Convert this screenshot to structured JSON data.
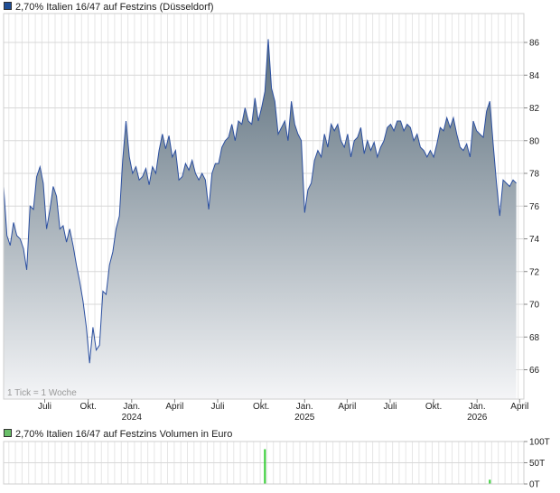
{
  "chart_data": [
    {
      "type": "area",
      "title": "2,70% Italien 16/47 auf Festzins (Düsseldorf)",
      "legend_color": "#1f4e96",
      "line_color": "#2b4fa0",
      "fill_top_color": "#5b6e7c",
      "fill_bottom_color": "#f4f5f7",
      "y_ticks": [
        "66",
        "68",
        "70",
        "72",
        "74",
        "76",
        "78",
        "80",
        "82",
        "84",
        "86"
      ],
      "x_labels": [
        {
          "month": "Juli",
          "year": ""
        },
        {
          "month": "Okt.",
          "year": ""
        },
        {
          "month": "Jan.",
          "year": "2024"
        },
        {
          "month": "April",
          "year": ""
        },
        {
          "month": "Juli",
          "year": ""
        },
        {
          "month": "Okt.",
          "year": ""
        },
        {
          "month": "Jan.",
          "year": "2025"
        },
        {
          "month": "April",
          "year": ""
        },
        {
          "month": "Juli",
          "year": ""
        },
        {
          "month": "Okt.",
          "year": ""
        },
        {
          "month": "Jan.",
          "year": "2026"
        },
        {
          "month": "April",
          "year": ""
        }
      ],
      "tick_note": "1 Tick = 1 Woche",
      "x_range": [
        "2023-04-05",
        "2026-04-10"
      ],
      "ylim": [
        64.2,
        87.5
      ],
      "grid": true,
      "series": [
        {
          "values": [
            [
              "2023-04-05",
              77.2
            ],
            [
              "2023-04-12",
              74.2
            ],
            [
              "2023-04-19",
              73.6
            ],
            [
              "2023-04-26",
              75.0
            ],
            [
              "2023-05-03",
              74.2
            ],
            [
              "2023-05-10",
              74.0
            ],
            [
              "2023-05-17",
              73.4
            ],
            [
              "2023-05-24",
              72.1
            ],
            [
              "2023-05-31",
              76.0
            ],
            [
              "2023-06-07",
              75.8
            ],
            [
              "2023-06-14",
              77.8
            ],
            [
              "2023-06-21",
              78.4
            ],
            [
              "2023-06-28",
              77.4
            ],
            [
              "2023-07-05",
              74.6
            ],
            [
              "2023-07-12",
              75.8
            ],
            [
              "2023-07-19",
              77.2
            ],
            [
              "2023-07-26",
              76.6
            ],
            [
              "2023-08-02",
              74.6
            ],
            [
              "2023-08-09",
              74.8
            ],
            [
              "2023-08-16",
              73.8
            ],
            [
              "2023-08-23",
              74.6
            ],
            [
              "2023-08-30",
              73.6
            ],
            [
              "2023-09-06",
              72.4
            ],
            [
              "2023-09-13",
              71.4
            ],
            [
              "2023-09-20",
              70.2
            ],
            [
              "2023-09-27",
              68.6
            ],
            [
              "2023-10-04",
              66.4
            ],
            [
              "2023-10-11",
              68.6
            ],
            [
              "2023-10-18",
              67.2
            ],
            [
              "2023-10-25",
              67.5
            ],
            [
              "2023-11-01",
              70.8
            ],
            [
              "2023-11-08",
              70.6
            ],
            [
              "2023-11-15",
              72.4
            ],
            [
              "2023-11-22",
              73.2
            ],
            [
              "2023-11-29",
              74.6
            ],
            [
              "2023-12-06",
              75.4
            ],
            [
              "2023-12-13",
              78.8
            ],
            [
              "2023-12-20",
              81.2
            ],
            [
              "2023-12-27",
              79.0
            ],
            [
              "2024-01-03",
              78.0
            ],
            [
              "2024-01-10",
              78.4
            ],
            [
              "2024-01-17",
              77.6
            ],
            [
              "2024-01-24",
              77.8
            ],
            [
              "2024-01-31",
              78.3
            ],
            [
              "2024-02-07",
              77.3
            ],
            [
              "2024-02-14",
              78.4
            ],
            [
              "2024-02-21",
              78.0
            ],
            [
              "2024-02-28",
              79.4
            ],
            [
              "2024-03-06",
              80.4
            ],
            [
              "2024-03-13",
              79.5
            ],
            [
              "2024-03-20",
              80.3
            ],
            [
              "2024-03-27",
              79.0
            ],
            [
              "2024-04-03",
              79.4
            ],
            [
              "2024-04-10",
              77.6
            ],
            [
              "2024-04-17",
              77.8
            ],
            [
              "2024-04-24",
              78.6
            ],
            [
              "2024-05-01",
              78.2
            ],
            [
              "2024-05-08",
              78.8
            ],
            [
              "2024-05-15",
              78.0
            ],
            [
              "2024-05-22",
              77.6
            ],
            [
              "2024-05-29",
              78.0
            ],
            [
              "2024-06-05",
              77.6
            ],
            [
              "2024-06-12",
              75.8
            ],
            [
              "2024-06-19",
              78.0
            ],
            [
              "2024-06-26",
              78.6
            ],
            [
              "2024-07-03",
              78.6
            ],
            [
              "2024-07-10",
              79.6
            ],
            [
              "2024-07-17",
              80.0
            ],
            [
              "2024-07-24",
              80.2
            ],
            [
              "2024-07-31",
              81.0
            ],
            [
              "2024-08-07",
              80.0
            ],
            [
              "2024-08-14",
              81.2
            ],
            [
              "2024-08-21",
              81.0
            ],
            [
              "2024-08-28",
              82.0
            ],
            [
              "2024-09-04",
              81.2
            ],
            [
              "2024-09-11",
              81.0
            ],
            [
              "2024-09-18",
              82.6
            ],
            [
              "2024-09-25",
              81.2
            ],
            [
              "2024-10-02",
              82.0
            ],
            [
              "2024-10-09",
              83.0
            ],
            [
              "2024-10-16",
              86.2
            ],
            [
              "2024-10-23",
              83.2
            ],
            [
              "2024-10-30",
              82.4
            ],
            [
              "2024-11-06",
              80.4
            ],
            [
              "2024-11-13",
              80.8
            ],
            [
              "2024-11-20",
              81.2
            ],
            [
              "2024-11-27",
              80.0
            ],
            [
              "2024-12-04",
              82.4
            ],
            [
              "2024-12-11",
              81.0
            ],
            [
              "2024-12-18",
              80.4
            ],
            [
              "2024-12-25",
              80.0
            ],
            [
              "2025-01-01",
              75.6
            ],
            [
              "2025-01-08",
              77.0
            ],
            [
              "2025-01-15",
              77.4
            ],
            [
              "2025-01-22",
              78.8
            ],
            [
              "2025-01-29",
              79.4
            ],
            [
              "2025-02-05",
              79.0
            ],
            [
              "2025-02-12",
              80.4
            ],
            [
              "2025-02-19",
              79.6
            ],
            [
              "2025-02-26",
              81.0
            ],
            [
              "2025-03-05",
              80.6
            ],
            [
              "2025-03-12",
              81.0
            ],
            [
              "2025-03-19",
              80.0
            ],
            [
              "2025-03-26",
              79.6
            ],
            [
              "2025-04-02",
              80.4
            ],
            [
              "2025-04-09",
              79.0
            ],
            [
              "2025-04-16",
              80.0
            ],
            [
              "2025-04-23",
              80.2
            ],
            [
              "2025-04-30",
              80.8
            ],
            [
              "2025-05-07",
              79.2
            ],
            [
              "2025-05-14",
              80.0
            ],
            [
              "2025-05-21",
              79.4
            ],
            [
              "2025-05-28",
              79.9
            ],
            [
              "2025-06-04",
              79.0
            ],
            [
              "2025-06-11",
              79.6
            ],
            [
              "2025-06-18",
              80.0
            ],
            [
              "2025-06-25",
              80.8
            ],
            [
              "2025-07-02",
              81.0
            ],
            [
              "2025-07-09",
              80.6
            ],
            [
              "2025-07-16",
              81.2
            ],
            [
              "2025-07-23",
              81.2
            ],
            [
              "2025-07-30",
              80.6
            ],
            [
              "2025-08-06",
              81.0
            ],
            [
              "2025-08-13",
              80.8
            ],
            [
              "2025-08-20",
              80.0
            ],
            [
              "2025-08-27",
              80.4
            ],
            [
              "2025-09-03",
              79.6
            ],
            [
              "2025-09-10",
              79.4
            ],
            [
              "2025-09-17",
              79.0
            ],
            [
              "2025-09-24",
              79.4
            ],
            [
              "2025-10-01",
              79.0
            ],
            [
              "2025-10-08",
              79.8
            ],
            [
              "2025-10-15",
              80.8
            ],
            [
              "2025-10-22",
              80.6
            ],
            [
              "2025-10-29",
              81.4
            ],
            [
              "2025-11-05",
              80.8
            ],
            [
              "2025-11-12",
              81.4
            ],
            [
              "2025-11-19",
              80.4
            ],
            [
              "2025-11-26",
              79.6
            ],
            [
              "2025-12-03",
              79.4
            ],
            [
              "2025-12-10",
              79.8
            ],
            [
              "2025-12-17",
              79.0
            ],
            [
              "2025-12-24",
              81.2
            ],
            [
              "2025-12-31",
              80.6
            ],
            [
              "2026-01-07",
              80.4
            ],
            [
              "2026-01-14",
              80.2
            ],
            [
              "2026-01-21",
              81.8
            ],
            [
              "2026-01-28",
              82.4
            ],
            [
              "2026-02-04",
              79.8
            ],
            [
              "2026-02-11",
              77.4
            ],
            [
              "2026-02-18",
              75.4
            ],
            [
              "2026-02-25",
              77.6
            ],
            [
              "2026-03-04",
              77.4
            ],
            [
              "2026-03-11",
              77.2
            ],
            [
              "2026-03-18",
              77.6
            ],
            [
              "2026-03-25",
              77.4
            ]
          ]
        }
      ]
    },
    {
      "type": "bar",
      "title": "2,70% Italien 16/47 auf Festzins Volumen in Euro",
      "legend_color": "#6abf69",
      "bar_color": "#33cc33",
      "y_ticks": [
        "0T",
        "50T",
        "100T"
      ],
      "ylim": [
        0,
        100000
      ],
      "grid": true,
      "series": [
        {
          "values": [
            [
              "2024-10-09",
              82000
            ],
            [
              "2026-01-28",
              10000
            ]
          ]
        }
      ]
    }
  ]
}
